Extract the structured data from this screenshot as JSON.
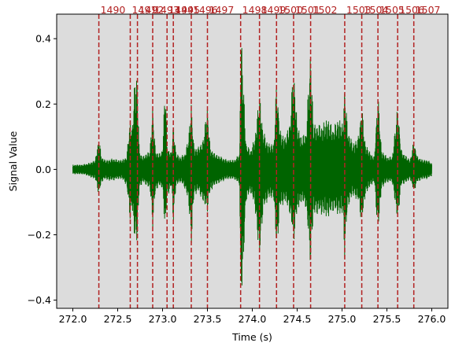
{
  "chart_data": {
    "type": "line",
    "title": "",
    "xlabel": "Time (s)",
    "ylabel": "Signal Value",
    "xlim": [
      271.82,
      276.18
    ],
    "ylim": [
      -0.425,
      0.475
    ],
    "grid": false,
    "colors": {
      "background": "#dcdcdc",
      "signal": "#006400",
      "event_line": "#b22222",
      "event_label": "#b22222"
    },
    "x_ticks": [
      {
        "value": 272.0,
        "label": "272.0"
      },
      {
        "value": 272.5,
        "label": "272.5"
      },
      {
        "value": 273.0,
        "label": "273.0"
      },
      {
        "value": 273.5,
        "label": "273.5"
      },
      {
        "value": 274.0,
        "label": "274.0"
      },
      {
        "value": 274.5,
        "label": "274.5"
      },
      {
        "value": 275.0,
        "label": "275.0"
      },
      {
        "value": 275.5,
        "label": "275.5"
      },
      {
        "value": 276.0,
        "label": "276.0"
      }
    ],
    "y_ticks": [
      {
        "value": -0.4,
        "label": "−0.4"
      },
      {
        "value": -0.2,
        "label": "−0.2"
      },
      {
        "value": 0.0,
        "label": "0.0"
      },
      {
        "value": 0.2,
        "label": "0.2"
      },
      {
        "value": 0.4,
        "label": "0.4"
      }
    ],
    "events": [
      {
        "t": 272.29,
        "label": "1490"
      },
      {
        "t": 272.64,
        "label": "1491"
      },
      {
        "t": 272.72,
        "label": "1492"
      },
      {
        "t": 272.89,
        "label": "1493"
      },
      {
        "t": 273.05,
        "label": "1494"
      },
      {
        "t": 273.12,
        "label": "1495"
      },
      {
        "t": 273.32,
        "label": "1496"
      },
      {
        "t": 273.5,
        "label": "1497"
      },
      {
        "t": 273.87,
        "label": "1498"
      },
      {
        "t": 274.08,
        "label": "1499"
      },
      {
        "t": 274.27,
        "label": "1500"
      },
      {
        "t": 274.46,
        "label": "1501"
      },
      {
        "t": 274.65,
        "label": "1502"
      },
      {
        "t": 275.03,
        "label": "1503"
      },
      {
        "t": 275.22,
        "label": "1504"
      },
      {
        "t": 275.4,
        "label": "1505"
      },
      {
        "t": 275.62,
        "label": "1506"
      },
      {
        "t": 275.8,
        "label": "1507"
      }
    ],
    "series": [
      {
        "envelope": {
          "x": [
            272.0,
            272.05,
            272.1,
            272.15,
            272.2,
            272.25,
            272.29,
            272.32,
            272.36,
            272.4,
            272.45,
            272.5,
            272.55,
            272.6,
            272.64,
            272.66,
            272.69,
            272.72,
            272.74,
            272.78,
            272.82,
            272.86,
            272.89,
            272.92,
            272.96,
            273.0,
            273.03,
            273.05,
            273.08,
            273.1,
            273.12,
            273.15,
            273.2,
            273.25,
            273.29,
            273.32,
            273.35,
            273.4,
            273.45,
            273.5,
            273.53,
            273.58,
            273.65,
            273.72,
            273.8,
            273.86,
            273.87,
            273.89,
            273.93,
            273.98,
            274.03,
            274.08,
            274.12,
            274.18,
            274.24,
            274.27,
            274.31,
            274.37,
            274.42,
            274.46,
            274.5,
            274.55,
            274.6,
            274.65,
            274.68,
            274.72,
            274.78,
            274.84,
            274.9,
            274.96,
            275.01,
            275.03,
            275.06,
            275.12,
            275.18,
            275.22,
            275.26,
            275.32,
            275.36,
            275.4,
            275.44,
            275.5,
            275.56,
            275.62,
            275.66,
            275.72,
            275.76,
            275.8,
            275.84,
            275.9,
            275.95,
            276.0
          ],
          "upper": [
            0.015,
            0.015,
            0.015,
            0.018,
            0.022,
            0.03,
            0.1,
            0.04,
            0.03,
            0.03,
            0.035,
            0.03,
            0.03,
            0.04,
            0.165,
            0.12,
            0.28,
            0.29,
            0.06,
            0.04,
            0.05,
            0.06,
            0.2,
            0.06,
            0.05,
            0.06,
            0.29,
            0.07,
            0.06,
            0.05,
            0.15,
            0.05,
            0.04,
            0.05,
            0.1,
            0.21,
            0.07,
            0.07,
            0.09,
            0.2,
            0.07,
            0.05,
            0.04,
            0.03,
            0.03,
            0.05,
            0.43,
            0.35,
            0.08,
            0.06,
            0.1,
            0.24,
            0.12,
            0.08,
            0.08,
            0.28,
            0.12,
            0.1,
            0.15,
            0.33,
            0.14,
            0.1,
            0.12,
            0.38,
            0.14,
            0.14,
            0.14,
            0.16,
            0.13,
            0.16,
            0.14,
            0.27,
            0.13,
            0.08,
            0.1,
            0.2,
            0.08,
            0.05,
            0.04,
            0.24,
            0.06,
            0.04,
            0.04,
            0.2,
            0.06,
            0.04,
            0.03,
            0.09,
            0.04,
            0.03,
            0.03,
            0.02
          ],
          "lower": [
            -0.015,
            -0.015,
            -0.015,
            -0.018,
            -0.025,
            -0.03,
            -0.08,
            -0.04,
            -0.03,
            -0.035,
            -0.035,
            -0.03,
            -0.03,
            -0.05,
            -0.16,
            -0.12,
            -0.22,
            -0.22,
            -0.06,
            -0.04,
            -0.05,
            -0.06,
            -0.18,
            -0.07,
            -0.05,
            -0.06,
            -0.2,
            -0.08,
            -0.07,
            -0.05,
            -0.17,
            -0.05,
            -0.04,
            -0.06,
            -0.1,
            -0.24,
            -0.08,
            -0.07,
            -0.1,
            -0.13,
            -0.07,
            -0.05,
            -0.04,
            -0.03,
            -0.03,
            -0.05,
            -0.43,
            -0.36,
            -0.1,
            -0.07,
            -0.12,
            -0.28,
            -0.13,
            -0.09,
            -0.09,
            -0.26,
            -0.12,
            -0.1,
            -0.14,
            -0.23,
            -0.13,
            -0.1,
            -0.12,
            -0.3,
            -0.14,
            -0.14,
            -0.14,
            -0.15,
            -0.13,
            -0.14,
            -0.14,
            -0.28,
            -0.12,
            -0.08,
            -0.1,
            -0.17,
            -0.08,
            -0.05,
            -0.04,
            -0.2,
            -0.06,
            -0.04,
            -0.04,
            -0.16,
            -0.05,
            -0.04,
            -0.03,
            -0.07,
            -0.04,
            -0.03,
            -0.03,
            -0.02
          ]
        }
      }
    ]
  }
}
